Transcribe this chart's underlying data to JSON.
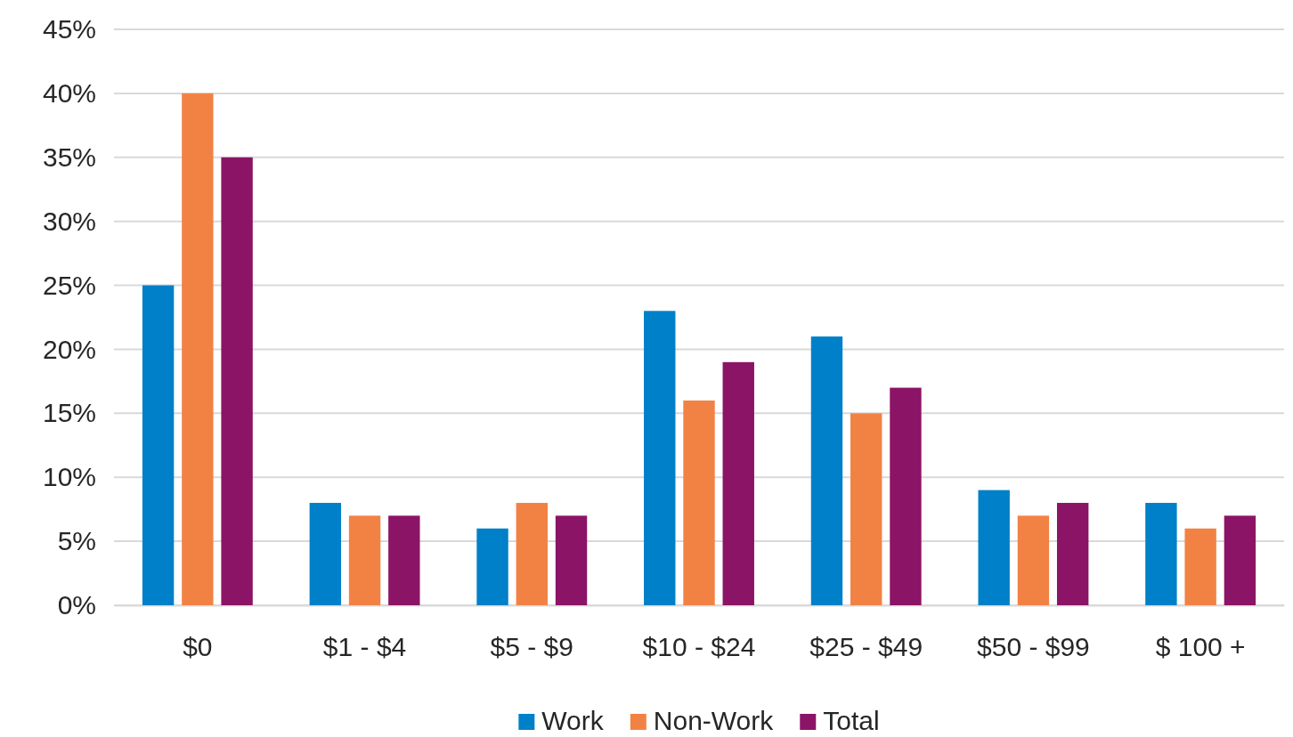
{
  "chart_data": {
    "type": "bar",
    "categories": [
      "$0",
      "$1 - $4",
      "$5 - $9",
      "$10 - $24",
      "$25 - $49",
      "$50 - $99",
      "$ 100 +"
    ],
    "series": [
      {
        "name": "Work",
        "color": "#0080c8",
        "values": [
          25,
          8,
          6,
          23,
          21,
          9,
          8
        ]
      },
      {
        "name": "Non-Work",
        "color": "#f28244",
        "values": [
          40,
          7,
          8,
          16,
          15,
          7,
          6
        ]
      },
      {
        "name": "Total",
        "color": "#8b1466",
        "values": [
          35,
          7,
          7,
          19,
          17,
          8,
          7
        ]
      }
    ],
    "ylim": [
      0,
      45
    ],
    "yticks": [
      {
        "value": 0,
        "label": "0%"
      },
      {
        "value": 5,
        "label": "5%"
      },
      {
        "value": 10,
        "label": "10%"
      },
      {
        "value": 15,
        "label": "15%"
      },
      {
        "value": 20,
        "label": "20%"
      },
      {
        "value": 25,
        "label": "25%"
      },
      {
        "value": 30,
        "label": "30%"
      },
      {
        "value": 35,
        "label": "35%"
      },
      {
        "value": 40,
        "label": "40%"
      },
      {
        "value": 45,
        "label": "45%"
      }
    ],
    "grid": "y",
    "legend": "bottom"
  }
}
